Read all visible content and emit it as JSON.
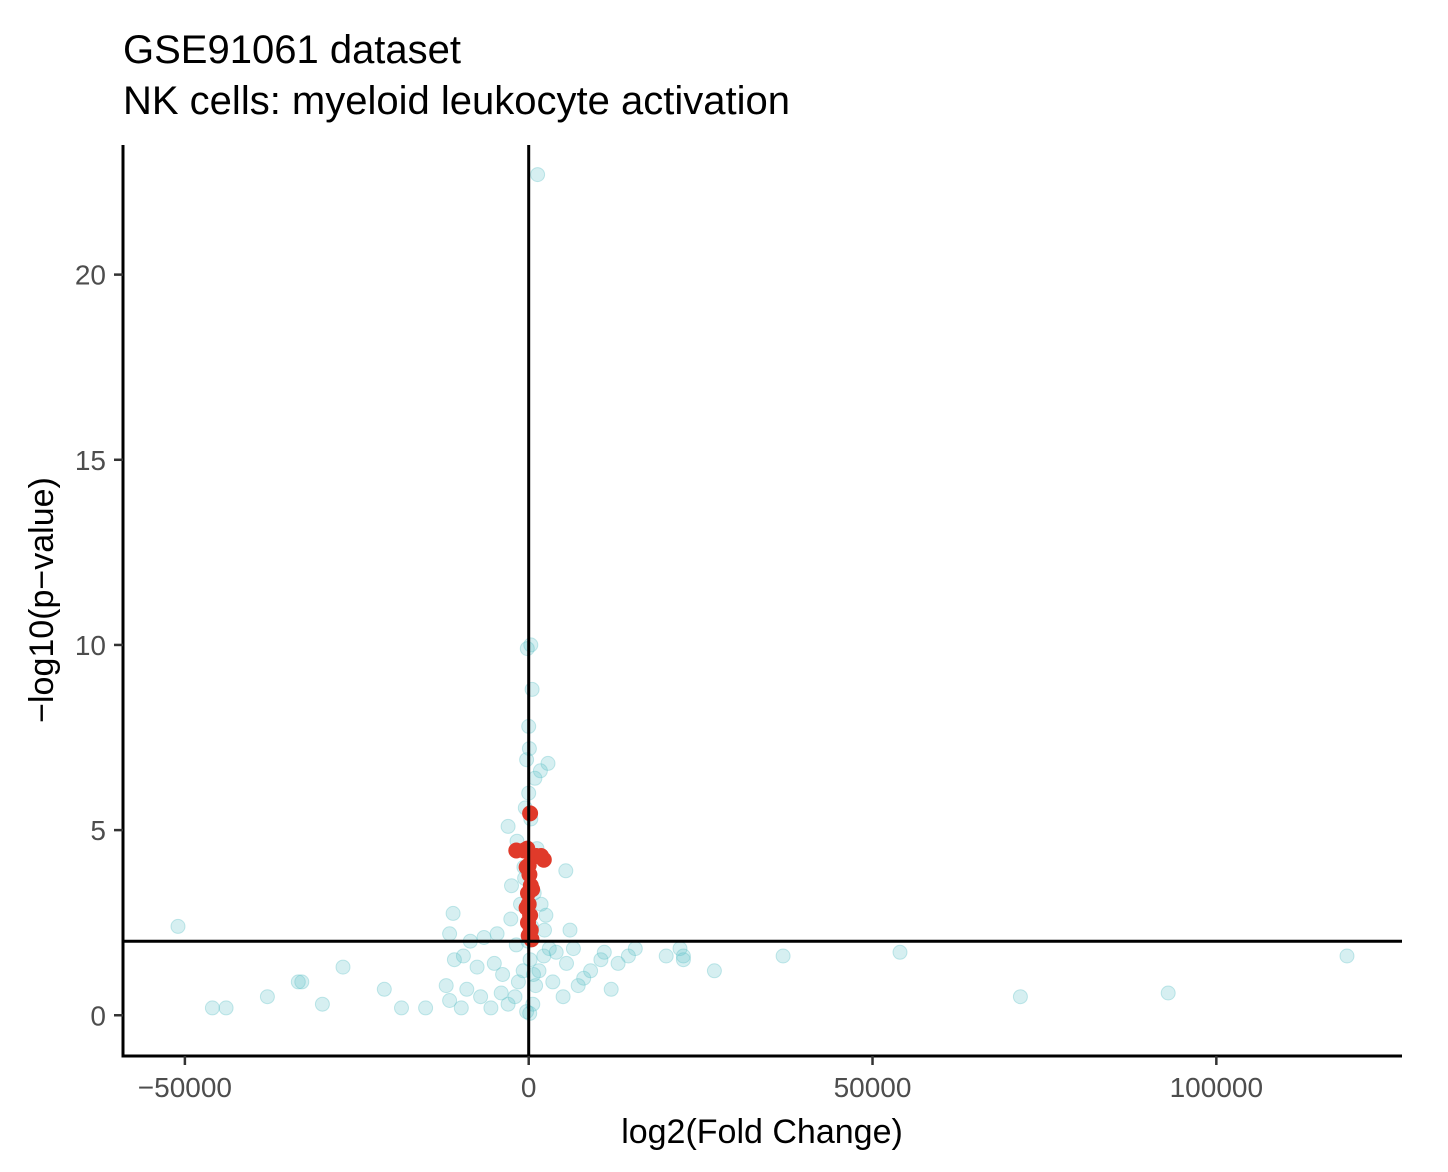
{
  "chart_data": {
    "type": "scatter",
    "title": "GSE91061 dataset",
    "subtitle": "NK cells: myeloid leukocyte activation",
    "xlabel": "log2(Fold Change)",
    "ylabel": "−log10(p−value)",
    "xlim": [
      -59000,
      127000
    ],
    "ylim": [
      -1.1,
      23.5
    ],
    "x_ticks": [
      -50000,
      0,
      50000,
      100000
    ],
    "x_tick_labels": [
      "−50000",
      "0",
      "50000",
      "100000"
    ],
    "y_ticks": [
      0,
      5,
      10,
      15,
      20
    ],
    "y_tick_labels": [
      "0",
      "5",
      "10",
      "15",
      "20"
    ],
    "reference_lines": {
      "vertical_x": 0,
      "horizontal_y": 2
    },
    "grid": false,
    "legend": "none",
    "colors": {
      "background_genes": "#5bbfc6",
      "highlight_genes": "#e03a2a"
    },
    "series": [
      {
        "color": "#5bbfc6",
        "opacity": 0.25,
        "points": [
          [
            1300,
            22.7
          ],
          [
            300,
            10
          ],
          [
            -200,
            9.9
          ],
          [
            500,
            8.8
          ],
          [
            0,
            7.8
          ],
          [
            100,
            7.2
          ],
          [
            -300,
            6.9
          ],
          [
            2800,
            6.8
          ],
          [
            1700,
            6.6
          ],
          [
            900,
            6.4
          ],
          [
            0,
            6.0
          ],
          [
            -500,
            5.6
          ],
          [
            300,
            5.3
          ],
          [
            -3000,
            5.1
          ],
          [
            -1700,
            4.7
          ],
          [
            1200,
            4.5
          ],
          [
            5400,
            3.9
          ],
          [
            -600,
            3.7
          ],
          [
            800,
            3.3
          ],
          [
            -1200,
            3.0
          ],
          [
            -2600,
            2.6
          ],
          [
            2500,
            2.7
          ],
          [
            -11000,
            2.75
          ],
          [
            6000,
            2.3
          ],
          [
            -11500,
            2.2
          ],
          [
            -4600,
            2.2
          ],
          [
            -8500,
            2.0
          ],
          [
            -6500,
            2.1
          ],
          [
            -51000,
            2.4
          ],
          [
            -9500,
            1.6
          ],
          [
            -5000,
            1.4
          ],
          [
            -10800,
            1.5
          ],
          [
            -7500,
            1.3
          ],
          [
            -3800,
            1.1
          ],
          [
            -12000,
            0.8
          ],
          [
            -9000,
            0.7
          ],
          [
            -7000,
            0.5
          ],
          [
            -11500,
            0.4
          ],
          [
            -4000,
            0.6
          ],
          [
            -9800,
            0.2
          ],
          [
            -5500,
            0.2
          ],
          [
            -3000,
            0.3
          ],
          [
            -2000,
            0.5
          ],
          [
            -1500,
            0.9
          ],
          [
            -800,
            1.2
          ],
          [
            200,
            1.5
          ],
          [
            600,
            0.3
          ],
          [
            1000,
            0.8
          ],
          [
            1500,
            1.2
          ],
          [
            2200,
            1.6
          ],
          [
            3000,
            1.8
          ],
          [
            3500,
            0.9
          ],
          [
            4000,
            1.7
          ],
          [
            5000,
            0.5
          ],
          [
            5500,
            1.4
          ],
          [
            6500,
            1.8
          ],
          [
            7200,
            0.8
          ],
          [
            8000,
            1.0
          ],
          [
            9000,
            1.2
          ],
          [
            10500,
            1.5
          ],
          [
            11000,
            1.7
          ],
          [
            12000,
            0.7
          ],
          [
            13000,
            1.4
          ],
          [
            14500,
            1.6
          ],
          [
            15500,
            1.8
          ],
          [
            20000,
            1.6
          ],
          [
            22000,
            1.8
          ],
          [
            22500,
            1.6
          ],
          [
            22500,
            1.5
          ],
          [
            27000,
            1.2
          ],
          [
            37000,
            1.6
          ],
          [
            54000,
            1.7
          ],
          [
            71500,
            0.5
          ],
          [
            93000,
            0.6
          ],
          [
            119000,
            1.6
          ],
          [
            -46000,
            0.2
          ],
          [
            -44000,
            0.2
          ],
          [
            -38000,
            0.5
          ],
          [
            -33500,
            0.9
          ],
          [
            -33000,
            0.9
          ],
          [
            -30000,
            0.3
          ],
          [
            -27000,
            1.3
          ],
          [
            -21000,
            0.7
          ],
          [
            -18500,
            0.2
          ],
          [
            -15000,
            0.2
          ],
          [
            -2500,
            3.5
          ],
          [
            1800,
            3.0
          ],
          [
            -700,
            4.0
          ],
          [
            400,
            2.4
          ],
          [
            -100,
            2.0
          ],
          [
            2300,
            2.3
          ],
          [
            -1800,
            1.9
          ],
          [
            700,
            1.1
          ],
          [
            -300,
            0.1
          ],
          [
            150,
            0.05
          ]
        ]
      },
      {
        "color": "#e03a2a",
        "opacity": 1,
        "points": [
          [
            200,
            5.45
          ],
          [
            -1800,
            4.45
          ],
          [
            -200,
            4.5
          ],
          [
            -700,
            4.45
          ],
          [
            1100,
            4.3
          ],
          [
            2200,
            4.2
          ],
          [
            1800,
            4.3
          ],
          [
            0,
            4.05
          ],
          [
            -300,
            4.0
          ],
          [
            300,
            3.5
          ],
          [
            -100,
            3.3
          ],
          [
            500,
            3.4
          ],
          [
            0,
            3.0
          ],
          [
            -300,
            2.9
          ],
          [
            200,
            2.7
          ],
          [
            -100,
            2.5
          ],
          [
            300,
            2.3
          ],
          [
            0,
            2.15
          ],
          [
            400,
            2.05
          ],
          [
            100,
            3.8
          ]
        ]
      }
    ]
  }
}
